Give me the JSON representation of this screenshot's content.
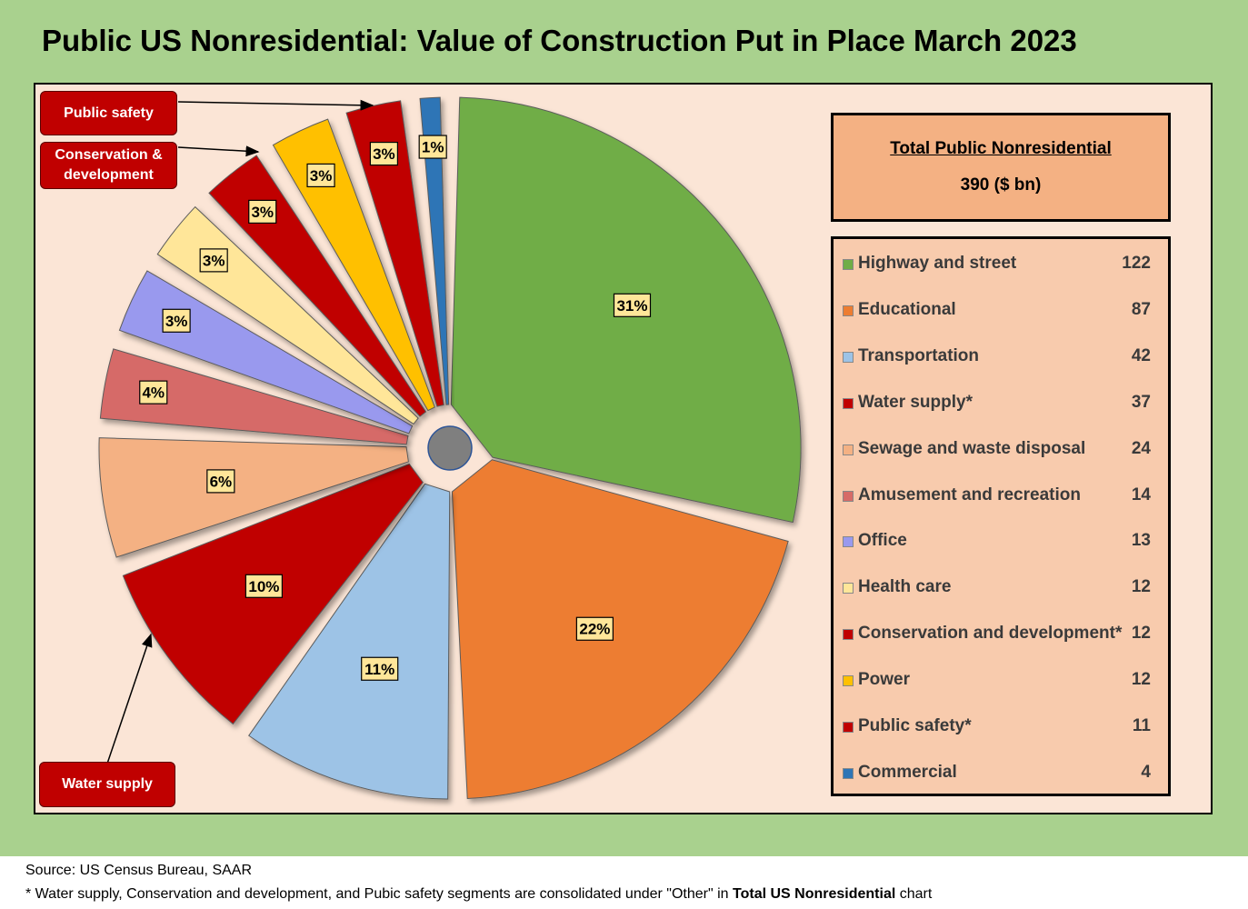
{
  "title": "Public US Nonresidential: Value of Construction Put in Place March 2023",
  "total": {
    "title": "Total Public Nonresidential",
    "value": "390 ($ bn)"
  },
  "callouts": {
    "public_safety": "Public safety",
    "conservation": "Conservation & development",
    "water_supply": "Water supply"
  },
  "chart_data": {
    "type": "pie",
    "exploded": true,
    "legend_position": "right",
    "slices": [
      {
        "name": "Highway and street",
        "legend_label": "Highway and street",
        "value": 122,
        "pct_label": "31%",
        "color": "#70ad47"
      },
      {
        "name": "Educational",
        "legend_label": "Educational",
        "value": 87,
        "pct_label": "22%",
        "color": "#ed7d31"
      },
      {
        "name": "Transportation",
        "legend_label": "Transportation",
        "value": 42,
        "pct_label": "11%",
        "color": "#9dc3e6"
      },
      {
        "name": "Water supply",
        "legend_label": "Water supply*",
        "value": 37,
        "pct_label": "10%",
        "color": "#c00000"
      },
      {
        "name": "Sewage and waste disposal",
        "legend_label": "Sewage and waste disposal",
        "value": 24,
        "pct_label": "6%",
        "color": "#f4b183"
      },
      {
        "name": "Amusement and recreation",
        "legend_label": "Amusement and recreation",
        "value": 14,
        "pct_label": "4%",
        "color": "#d66b67"
      },
      {
        "name": "Office",
        "legend_label": "Office",
        "value": 13,
        "pct_label": "3%",
        "color": "#9999ee"
      },
      {
        "name": "Health care",
        "legend_label": "Health care",
        "value": 12,
        "pct_label": "3%",
        "color": "#ffe699"
      },
      {
        "name": "Conservation and development",
        "legend_label": "Conservation and development*",
        "value": 12,
        "pct_label": "3%",
        "color": "#c00000"
      },
      {
        "name": "Power",
        "legend_label": "Power",
        "value": 12,
        "pct_label": "3%",
        "color": "#ffc000"
      },
      {
        "name": "Public safety",
        "legend_label": "Public safety*",
        "value": 11,
        "pct_label": "3%",
        "color": "#c00000"
      },
      {
        "name": "Commercial",
        "legend_label": "Commercial",
        "value": 4,
        "pct_label": "1%",
        "color": "#2e75b6"
      }
    ]
  },
  "footer": {
    "source": "Source: US Census Bureau, SAAR",
    "note_prefix": "* Water supply, Conservation and development, and Pubic safety segments are consolidated under \"Other\" in ",
    "note_bold": "Total US Nonresidential",
    "note_suffix": " chart"
  }
}
